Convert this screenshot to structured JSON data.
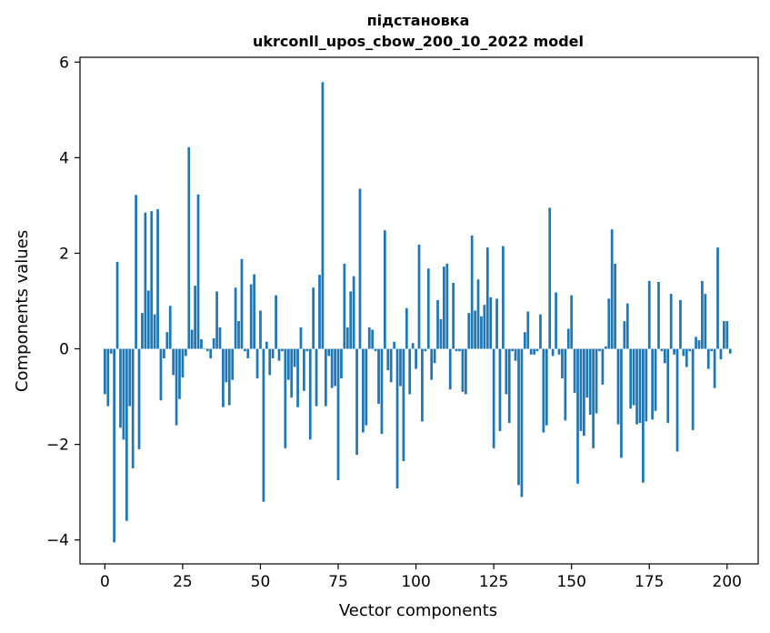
{
  "chart_data": {
    "type": "bar",
    "title": "підстановка",
    "subtitle": "ukrconll_upos_cbow_200_10_2022 model",
    "xlabel": "Vector components",
    "ylabel": "Components values",
    "xlim": [
      -8,
      210
    ],
    "ylim": [
      -4.5,
      6.1
    ],
    "xticks": [
      0,
      25,
      50,
      75,
      100,
      125,
      150,
      175,
      200
    ],
    "yticks": [
      -4,
      -2,
      0,
      2,
      4,
      6
    ],
    "xtick_labels": [
      "0",
      "25",
      "50",
      "75",
      "100",
      "125",
      "150",
      "175",
      "200"
    ],
    "ytick_labels": [
      "−4",
      "−2",
      "0",
      "2",
      "4",
      "6"
    ],
    "bar_color": "#1f77b4",
    "grid": false,
    "values": [
      -0.95,
      -1.2,
      -0.1,
      -4.05,
      1.82,
      -1.65,
      -1.9,
      -3.6,
      -1.2,
      -2.5,
      3.22,
      -2.1,
      0.75,
      2.85,
      1.22,
      2.88,
      0.72,
      2.92,
      -1.08,
      -0.2,
      0.35,
      0.9,
      -0.55,
      -1.6,
      -1.05,
      -0.6,
      -0.15,
      4.22,
      0.4,
      1.32,
      3.23,
      0.2,
      0.0,
      -0.05,
      -0.2,
      0.22,
      1.2,
      0.45,
      -1.22,
      -0.7,
      -1.18,
      -0.65,
      1.28,
      0.58,
      1.88,
      -0.05,
      -0.2,
      1.35,
      1.56,
      -0.62,
      0.8,
      -3.2,
      0.15,
      -0.55,
      -0.2,
      1.12,
      -0.25,
      -0.05,
      -2.08,
      -0.65,
      -1.02,
      -0.38,
      -1.22,
      0.45,
      -0.88,
      -0.05,
      -1.9,
      1.28,
      -1.2,
      1.55,
      5.58,
      -1.2,
      -0.15,
      -0.82,
      -0.78,
      -2.75,
      -0.62,
      1.78,
      0.45,
      1.2,
      1.52,
      -2.22,
      3.35,
      -1.75,
      -1.6,
      0.45,
      0.4,
      -0.05,
      -1.15,
      -1.78,
      2.48,
      -0.45,
      -0.7,
      0.15,
      -2.92,
      -0.78,
      -2.35,
      0.85,
      -0.95,
      0.12,
      -0.42,
      2.18,
      -1.52,
      -0.05,
      1.68,
      -0.65,
      -0.3,
      1.02,
      0.62,
      1.72,
      1.78,
      -0.85,
      1.38,
      -0.05,
      -0.05,
      -0.9,
      -0.95,
      0.75,
      2.37,
      0.8,
      1.45,
      0.68,
      0.92,
      2.12,
      1.08,
      -2.08,
      1.05,
      -1.72,
      2.15,
      -0.95,
      -1.55,
      -0.05,
      -0.25,
      -2.85,
      -3.1,
      0.35,
      0.78,
      -0.12,
      -0.12,
      -0.05,
      0.72,
      -1.75,
      -1.6,
      2.95,
      -0.15,
      1.18,
      -0.12,
      -0.62,
      -1.5,
      0.42,
      1.12,
      -0.92,
      -2.82,
      -1.72,
      -1.82,
      -1.02,
      -1.38,
      -2.08,
      -1.35,
      -0.05,
      -0.75,
      0.05,
      1.05,
      2.5,
      1.78,
      -1.58,
      -2.28,
      0.58,
      0.95,
      -1.25,
      -1.18,
      -1.58,
      -1.55,
      -2.8,
      -1.52,
      1.42,
      -1.48,
      -1.3,
      1.4,
      -0.05,
      -0.3,
      -1.55,
      1.15,
      -0.12,
      -2.15,
      1.02,
      -0.15,
      -0.38,
      -0.05,
      -1.7,
      0.25,
      0.18,
      1.42,
      1.15,
      -0.42,
      -0.05,
      -0.82,
      2.12,
      -0.22,
      0.58,
      0.58,
      -0.1
    ]
  }
}
